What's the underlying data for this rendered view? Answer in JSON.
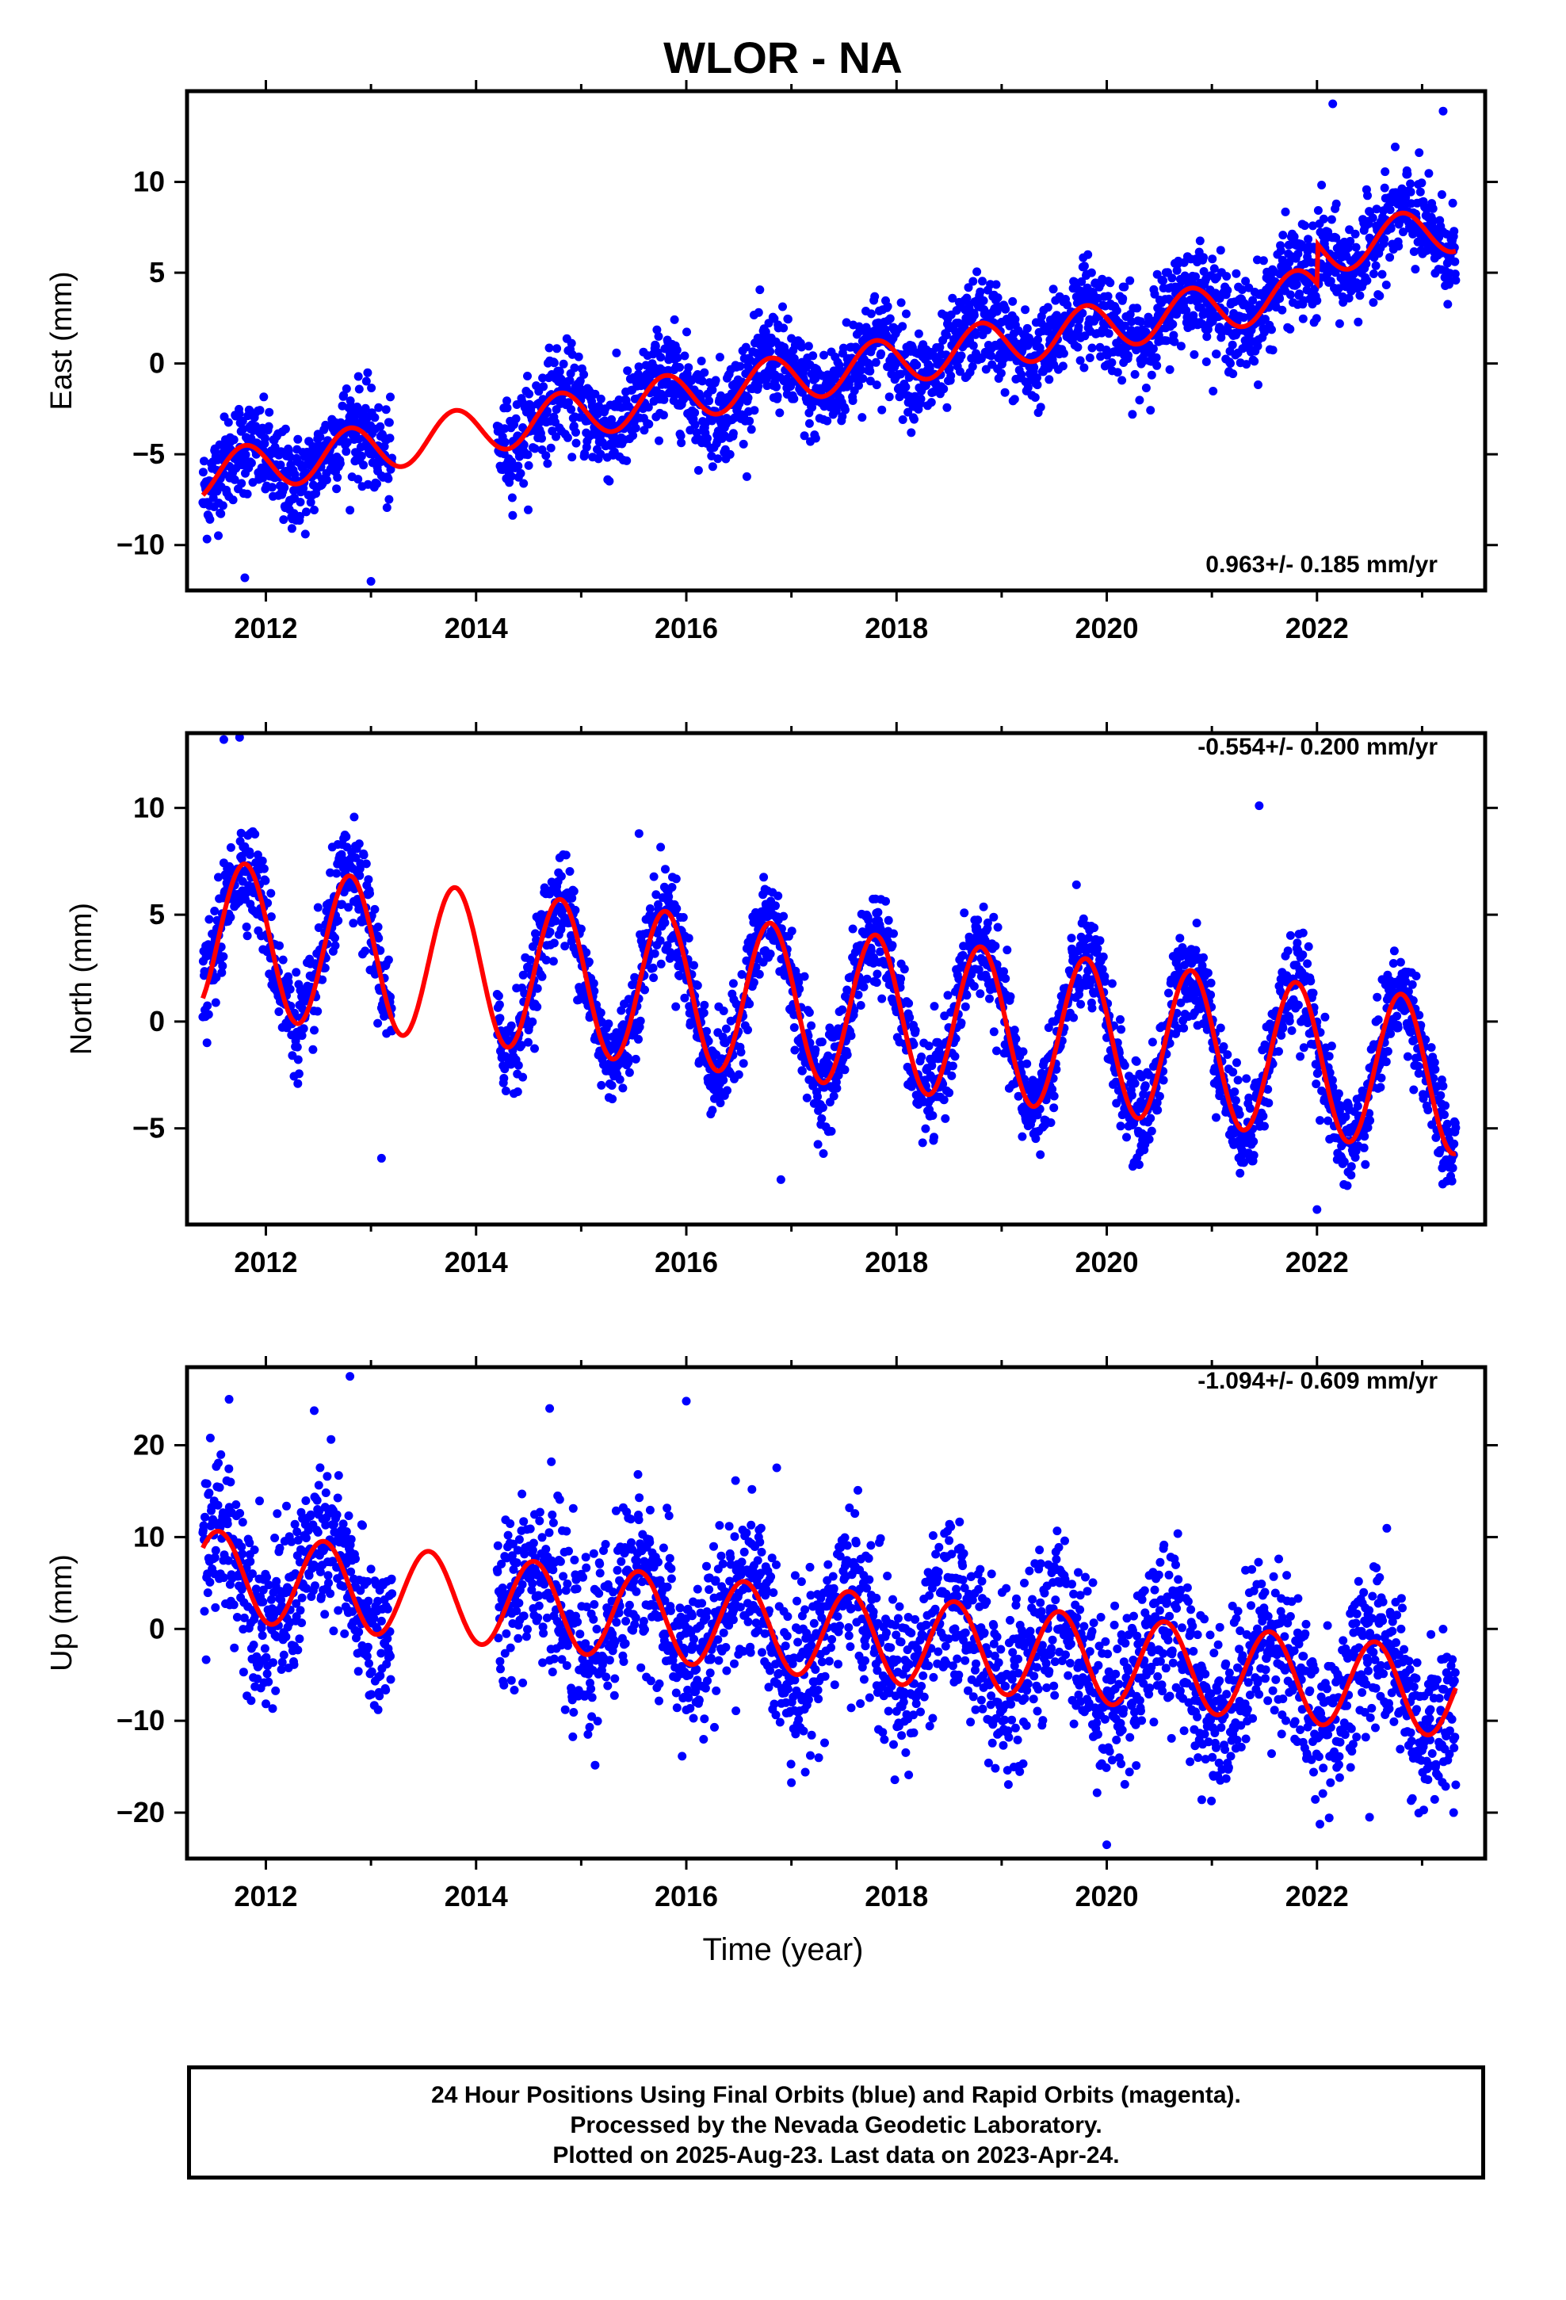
{
  "title": "WLOR - NA",
  "xlabel": "Time (year)",
  "footer": {
    "line1": "24 Hour Positions Using Final Orbits (blue) and Rapid Orbits (magenta).",
    "line2": "Processed by the Nevada Geodetic Laboratory.",
    "line3": "Plotted on 2025-Aug-23. Last data on 2023-Apr-24."
  },
  "colors": {
    "points": "#0000ff",
    "fit": "#ff0000",
    "axis": "#000000"
  },
  "chart_data": [
    {
      "type": "scatter",
      "id": "east",
      "ylabel": "East (mm)",
      "rate": "0.963+/- 0.185 mm/yr",
      "xlim": [
        2011.25,
        2023.6
      ],
      "ylim": [
        -12.5,
        15
      ],
      "xticks": [
        2012,
        2014,
        2016,
        2018,
        2020,
        2022
      ],
      "yticks": [
        -10,
        -5,
        0,
        5,
        10
      ],
      "fit": {
        "x0": 2011.4,
        "intercept": -6.2,
        "slope": 0.963,
        "amplitude": 1.3,
        "phase_year": 0.55,
        "step_year": 2022.0,
        "step": 2.2
      },
      "data": {
        "segments": [
          [
            2011.4,
            2013.2
          ],
          [
            2014.2,
            2023.32
          ]
        ],
        "noise": 1.3
      },
      "outliers": [
        [
          2022.15,
          14.3
        ],
        [
          2023.2,
          13.9
        ],
        [
          2013.0,
          -12.0
        ],
        [
          2011.8,
          -11.8
        ]
      ]
    },
    {
      "type": "scatter",
      "id": "north",
      "ylabel": "North (mm)",
      "rate": "-0.554+/- 0.200 mm/yr",
      "xlim": [
        2011.25,
        2023.6
      ],
      "ylim": [
        -9.5,
        13.5
      ],
      "xticks": [
        2012,
        2014,
        2016,
        2018,
        2020,
        2022
      ],
      "yticks": [
        -5,
        0,
        5,
        10
      ],
      "fit": {
        "x0": 2011.4,
        "intercept": 4.0,
        "slope": -0.554,
        "amplitude": 3.6,
        "phase_year": 0.55
      },
      "data": {
        "segments": [
          [
            2011.4,
            2013.2
          ],
          [
            2014.2,
            2023.32
          ]
        ],
        "noise": 1.1
      },
      "outliers": [
        [
          2011.6,
          13.2
        ],
        [
          2011.75,
          13.3
        ],
        [
          2021.45,
          10.1
        ],
        [
          2015.55,
          8.8
        ],
        [
          2016.9,
          -7.4
        ],
        [
          2013.1,
          -6.4
        ],
        [
          2022.0,
          -8.8
        ]
      ]
    },
    {
      "type": "scatter",
      "id": "up",
      "ylabel": "Up (mm)",
      "rate": "-1.094+/- 0.609 mm/yr",
      "xlim": [
        2011.25,
        2023.6
      ],
      "ylim": [
        -25,
        28.5
      ],
      "xticks": [
        2012,
        2014,
        2016,
        2018,
        2020,
        2022
      ],
      "yticks": [
        -20,
        -10,
        0,
        10,
        20
      ],
      "fit": {
        "x0": 2011.4,
        "intercept": 6.0,
        "slope": -1.094,
        "amplitude": 4.8,
        "phase_year": 0.3
      },
      "data": {
        "segments": [
          [
            2011.4,
            2013.2
          ],
          [
            2014.2,
            2023.32
          ]
        ],
        "noise": 4.5
      },
      "outliers": [
        [
          2012.8,
          27.5
        ],
        [
          2011.65,
          25.0
        ],
        [
          2016.0,
          24.8
        ],
        [
          2014.7,
          24.0
        ],
        [
          2020.0,
          -23.5
        ],
        [
          2022.5,
          -20.5
        ],
        [
          2023.3,
          -20.0
        ]
      ]
    }
  ]
}
